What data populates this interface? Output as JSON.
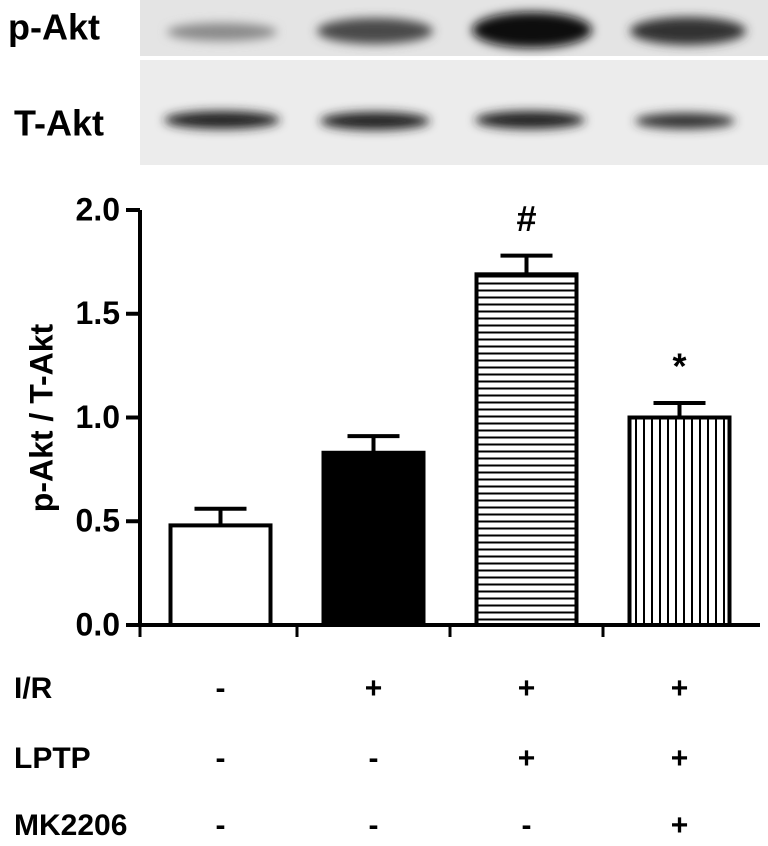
{
  "blot": {
    "rows": [
      "p-Akt",
      "T-Akt"
    ]
  },
  "chart_data": {
    "type": "bar",
    "y_label": "p-Akt / T-Akt",
    "values": [
      0.48,
      0.83,
      1.69,
      1.0
    ],
    "errors": [
      0.08,
      0.08,
      0.09,
      0.07
    ],
    "fills": [
      "white",
      "solid",
      "horizontal",
      "vertical"
    ],
    "color": "#000000",
    "annotations": [
      {
        "index": 2,
        "text": "#"
      },
      {
        "index": 3,
        "text": "*"
      }
    ],
    "ylim": [
      0,
      2.0
    ],
    "yticks": [
      {
        "value": 0,
        "label": "0.0"
      },
      0.5,
      {
        "value": 1.0,
        "label": "1.0"
      },
      1.5,
      {
        "value": 2.0,
        "label": "2.0"
      }
    ],
    "grid": false,
    "conditions": [
      {
        "label": "I/R",
        "values": [
          "-",
          "+",
          "+",
          "+"
        ]
      },
      {
        "label": "LPTP",
        "values": [
          "-",
          "-",
          "+",
          "+"
        ]
      },
      {
        "label": "MK2206",
        "values": [
          "-",
          "-",
          "-",
          "+"
        ]
      }
    ]
  }
}
